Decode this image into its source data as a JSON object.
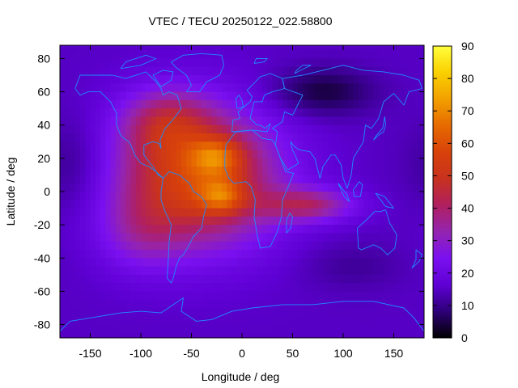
{
  "chart_data": {
    "type": "heatmap",
    "title": "VTEC / TECU 20250122_022.58800",
    "xlabel": "Longitude / deg",
    "ylabel": "Latitude / deg",
    "xlim": [
      -180,
      180
    ],
    "ylim": [
      -88,
      88
    ],
    "x_ticks": [
      -150,
      -100,
      -50,
      0,
      50,
      100,
      150
    ],
    "y_ticks": [
      -80,
      -60,
      -40,
      -20,
      0,
      20,
      40,
      60,
      80
    ],
    "colorbar": {
      "range": [
        0,
        90
      ],
      "ticks": [
        0,
        10,
        20,
        30,
        40,
        50,
        60,
        70,
        80,
        90
      ],
      "palette": [
        "#000000",
        "#2e0078",
        "#5e00d4",
        "#7a10f0",
        "#9424b0",
        "#b0205f",
        "#c8321e",
        "#d8420a",
        "#e66a00",
        "#f2a000",
        "#fad000",
        "#ffff3c"
      ]
    },
    "background_vtec": 18,
    "features": [
      {
        "name": "equatorial-anomaly-north-crest",
        "lon": -25,
        "lat": 20,
        "vtec": 86
      },
      {
        "name": "equatorial-anomaly-south-crest",
        "lon": -20,
        "lat": -3,
        "vtec": 84
      },
      {
        "name": "broad-dayside-region",
        "lon": -45,
        "lat": 5,
        "vtec": 60
      },
      {
        "name": "indian-ocean-tongue",
        "lon": 70,
        "lat": -8,
        "vtec": 45
      },
      {
        "name": "north-atlantic-extension",
        "lon": -60,
        "lat": 45,
        "vtec": 42
      },
      {
        "name": "north-polar-minimum",
        "lon": 80,
        "lat": 60,
        "vtec": 4
      },
      {
        "name": "southern-mid-latitude-trough",
        "lon": 100,
        "lat": -45,
        "vtec": 14
      }
    ]
  }
}
